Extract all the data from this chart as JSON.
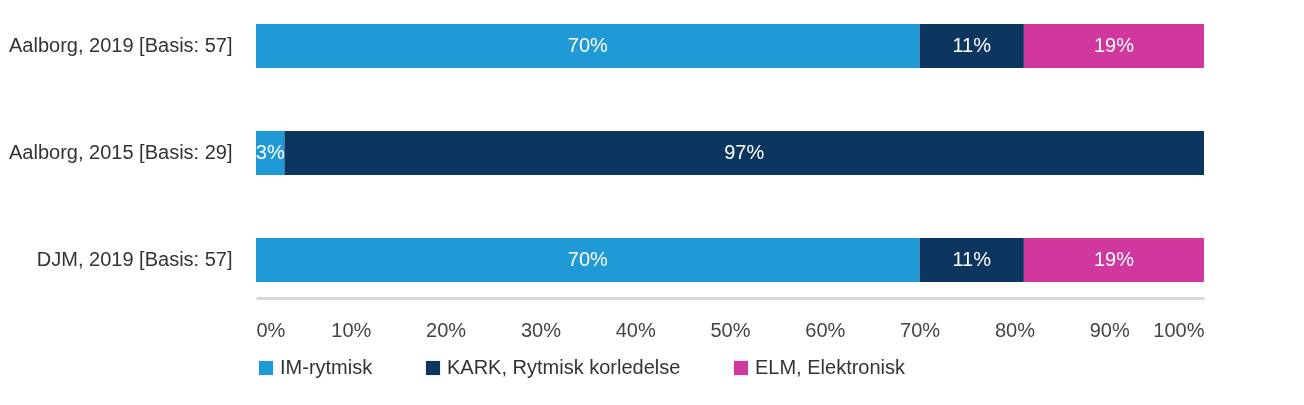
{
  "chart_data": {
    "type": "bar",
    "orientation": "horizontal",
    "stacked": true,
    "categories": [
      "Aalborg, 2019 [Basis: 57]",
      "Aalborg, 2015 [Basis: 29]",
      "DJM, 2019 [Basis: 57]"
    ],
    "series": [
      {
        "name": "IM-rytmisk",
        "color": "#1f9ad6",
        "values": [
          70,
          3,
          70
        ],
        "value_labels": [
          "70%",
          "3%",
          "70%"
        ]
      },
      {
        "name": "KARK, Rytmisk korledelse",
        "color": "#0c365f",
        "values": [
          11,
          97,
          11
        ],
        "value_labels": [
          "11%",
          "97%",
          "11%"
        ]
      },
      {
        "name": "ELM, Elektronisk",
        "color": "#d1389e",
        "values": [
          19,
          null,
          19
        ],
        "value_labels": [
          "19%",
          null,
          "19%"
        ]
      }
    ],
    "xlim": [
      0,
      100
    ],
    "xticks": [
      {
        "value": 0,
        "label": "0%"
      },
      {
        "value": 10,
        "label": "10%"
      },
      {
        "value": 20,
        "label": "20%"
      },
      {
        "value": 30,
        "label": "30%"
      },
      {
        "value": 40,
        "label": "40%"
      },
      {
        "value": 50,
        "label": "50%"
      },
      {
        "value": 60,
        "label": "60%"
      },
      {
        "value": 70,
        "label": "70%"
      },
      {
        "value": 80,
        "label": "80%"
      },
      {
        "value": 90,
        "label": "90%"
      },
      {
        "value": 100,
        "label": "100%"
      }
    ],
    "grid": false,
    "legend": "bottom"
  }
}
